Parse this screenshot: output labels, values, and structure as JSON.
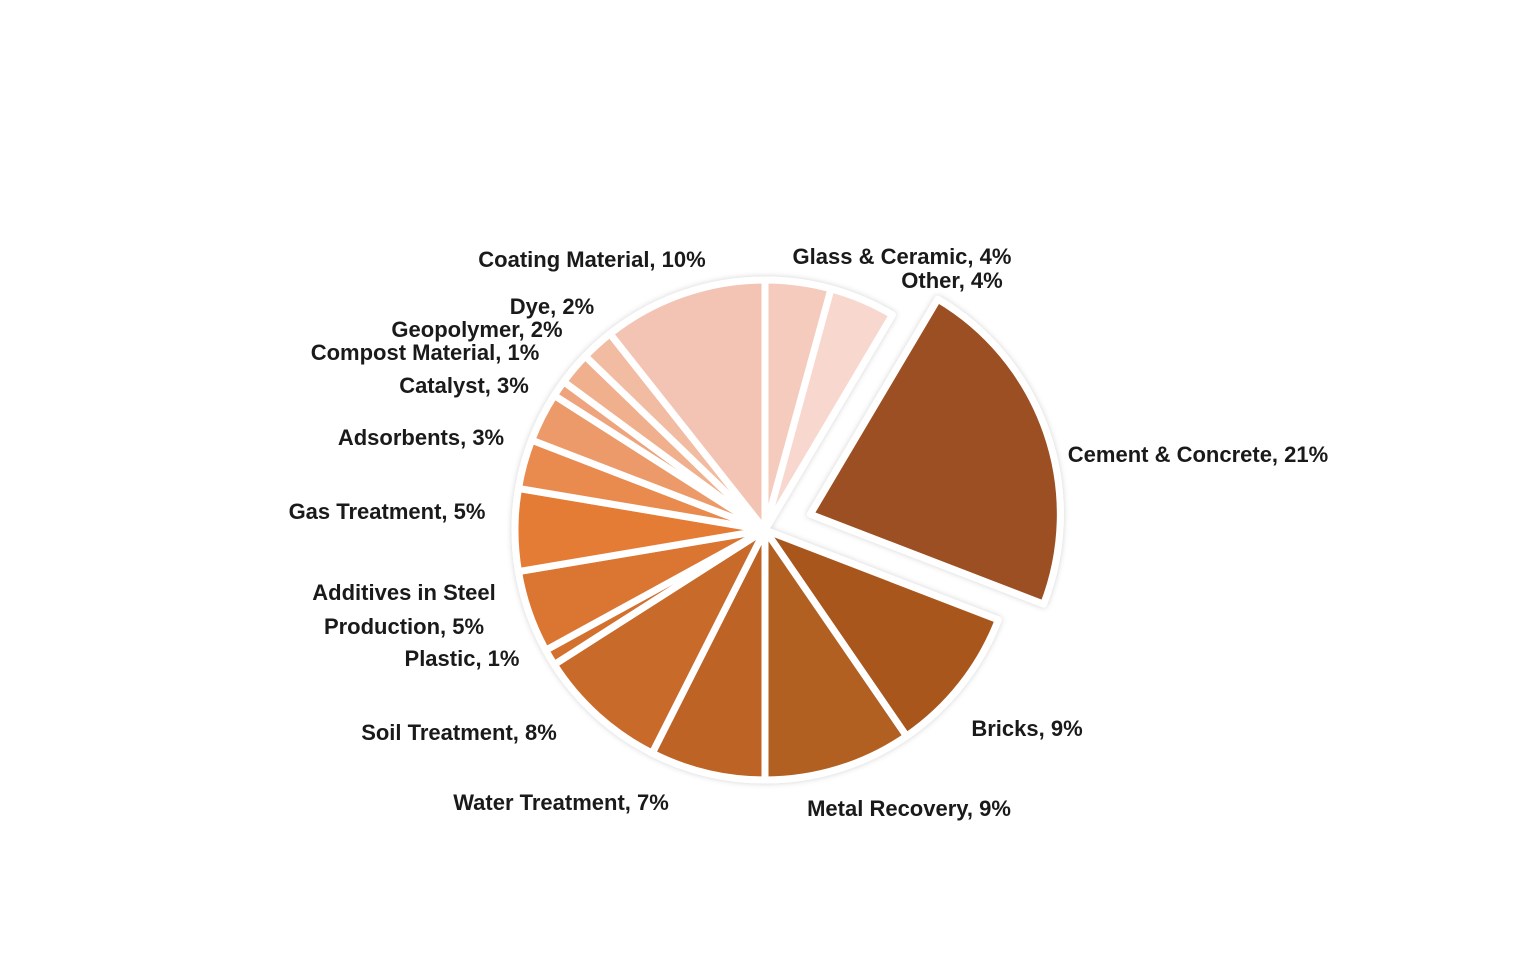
{
  "chart_data": {
    "type": "pie",
    "values": [
      4,
      4,
      21,
      9,
      9,
      7,
      8,
      1,
      5,
      5,
      3,
      3,
      1,
      2,
      2,
      10
    ],
    "value_labels": [
      "Glass & Ceramic, 4%",
      "Other, 4%",
      "Cement & Concrete, 21%",
      "Bricks, 9%",
      "Metal Recovery, 9%",
      "Water Treatment, 7%",
      "Soil Treatment, 8%",
      "Plastic, 1%",
      "Additives in Steel Production, 5%",
      "Gas Treatment, 5%",
      "Adsorbents, 3%",
      "Catalyst, 3%",
      "Compost Material, 1%",
      "Geopolymer, 2%",
      "Dye, 2%",
      "Coating Material, 10%"
    ],
    "colors": [
      "#f5cbbd",
      "#f8d8ce",
      "#9b4f20",
      "#a9561f",
      "#b25e23",
      "#bd6427",
      "#c86a2b",
      "#d3702e",
      "#db7431",
      "#e57b34",
      "#e98a50",
      "#ec9a6a",
      "#eea47c",
      "#f0b08e",
      "#f2bca2",
      "#f3c4b3"
    ],
    "exploded": [
      2
    ]
  }
}
